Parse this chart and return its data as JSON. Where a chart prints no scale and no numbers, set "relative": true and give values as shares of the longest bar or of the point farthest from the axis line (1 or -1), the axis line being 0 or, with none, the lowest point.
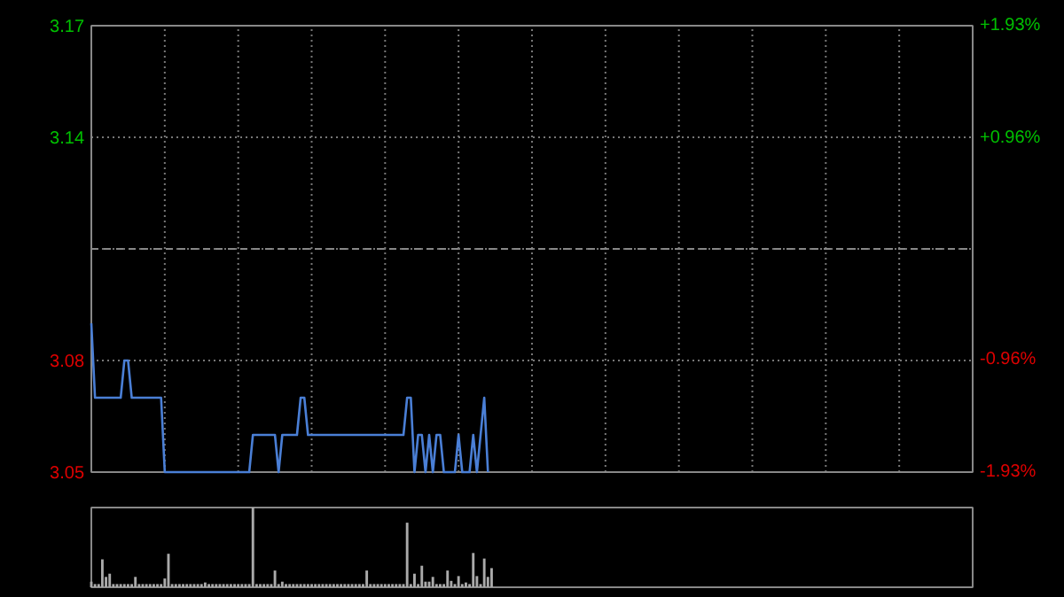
{
  "chart_data": [
    {
      "type": "line",
      "categories": [
        null,
        null,
        null,
        null,
        null,
        null,
        null,
        null,
        null,
        null,
        null,
        null,
        null,
        null,
        null,
        null,
        null,
        null,
        null,
        null,
        null,
        null,
        null,
        null,
        null,
        null,
        null,
        null,
        null,
        null,
        null,
        null,
        null,
        null,
        null,
        null,
        null,
        null,
        null,
        null,
        null,
        null,
        null,
        null,
        null,
        null,
        null,
        null,
        null,
        null,
        null,
        null,
        null,
        null,
        null,
        null,
        null,
        null,
        null,
        null,
        null,
        null,
        null,
        null,
        null,
        null,
        null,
        null,
        null,
        null,
        null,
        null,
        null,
        null,
        null,
        null,
        null,
        null,
        null,
        null,
        null,
        null,
        null,
        null,
        null,
        null,
        null,
        null,
        null,
        null,
        null,
        null,
        null,
        null,
        null,
        null,
        null,
        null,
        null,
        null,
        null,
        null,
        null,
        null,
        null,
        null,
        null,
        null,
        null,
        null,
        null,
        null,
        null,
        null,
        null,
        null,
        null,
        null,
        null,
        null,
        null,
        null,
        null,
        null,
        null,
        null,
        null,
        null,
        null,
        null,
        null,
        null,
        null,
        null,
        null,
        null,
        null,
        null,
        null,
        null,
        null,
        null,
        null,
        null,
        null,
        null,
        null,
        null,
        null,
        null,
        null,
        null,
        null,
        null,
        null,
        null,
        null,
        null,
        null,
        null,
        null,
        null,
        null,
        null,
        null,
        null,
        null,
        null,
        null,
        null,
        null,
        null,
        null,
        null,
        null,
        null,
        null,
        null,
        null,
        null,
        null,
        null,
        null,
        null,
        null,
        null,
        null,
        null,
        null,
        null,
        null,
        null,
        null,
        null,
        null,
        null,
        null,
        null,
        null,
        null,
        null,
        null,
        null,
        null,
        null,
        null,
        null,
        null,
        null,
        null,
        null,
        null,
        null,
        null,
        null,
        null,
        null,
        null,
        null,
        null,
        null,
        null,
        null,
        null,
        null,
        null,
        null,
        null,
        null,
        null,
        null,
        null,
        null,
        null,
        null,
        null,
        null,
        null,
        null,
        null,
        null
      ],
      "ylim": [
        3.05,
        3.17
      ],
      "yticks": [
        3.05,
        3.08,
        {
          "value": 3.11,
          "label": null
        },
        3.14,
        3.17
      ],
      "y2lim": [
        -1.93,
        1.93
      ],
      "y2ticks": [
        {
          "value": -1.93,
          "label": "-1.93%"
        },
        {
          "value": -0.96,
          "label": "-0.96%"
        },
        {
          "value": 0.96,
          "label": "+0.96%"
        },
        {
          "value": 1.93,
          "label": "+1.93%"
        }
      ],
      "ref_lines": [
        {
          "axis": "y",
          "value": 3.11,
          "label": null,
          "line_style": "dashed",
          "color": "#888888"
        }
      ],
      "grid": true,
      "tick_labels": "y",
      "marker": "none",
      "line_style": "solid",
      "series": [
        {
          "color": "#4a7fd6",
          "values": [
            3.09,
            3.07,
            3.07,
            3.07,
            3.07,
            3.07,
            3.07,
            3.07,
            3.07,
            3.08,
            3.08,
            3.07,
            3.07,
            3.07,
            3.07,
            3.07,
            3.07,
            3.07,
            3.07,
            3.07,
            3.05,
            3.05,
            3.05,
            3.05,
            3.05,
            3.05,
            3.05,
            3.05,
            3.05,
            3.05,
            3.05,
            3.05,
            3.05,
            3.05,
            3.05,
            3.05,
            3.05,
            3.05,
            3.05,
            3.05,
            3.05,
            3.05,
            3.05,
            3.05,
            3.06,
            3.06,
            3.06,
            3.06,
            3.06,
            3.06,
            3.06,
            3.05,
            3.06,
            3.06,
            3.06,
            3.06,
            3.06,
            3.07,
            3.07,
            3.06,
            3.06,
            3.06,
            3.06,
            3.06,
            3.06,
            3.06,
            3.06,
            3.06,
            3.06,
            3.06,
            3.06,
            3.06,
            3.06,
            3.06,
            3.06,
            3.06,
            3.06,
            3.06,
            3.06,
            3.06,
            3.06,
            3.06,
            3.06,
            3.06,
            3.06,
            3.06,
            3.07,
            3.07,
            3.05,
            3.06,
            3.06,
            3.05,
            3.06,
            3.05,
            3.06,
            3.06,
            3.05,
            3.05,
            3.05,
            3.05,
            3.06,
            3.05,
            3.05,
            3.05,
            3.06,
            3.05,
            3.06,
            3.07,
            3.05,
            null,
            null,
            null,
            null,
            null,
            null,
            null,
            null,
            null,
            null,
            null,
            null,
            null,
            null,
            null,
            null,
            null,
            null,
            null,
            null,
            null,
            null,
            null,
            null,
            null,
            null,
            null,
            null,
            null,
            null,
            null,
            null,
            null,
            null,
            null,
            null,
            null,
            null,
            null,
            null,
            null,
            null,
            null,
            null,
            null,
            null,
            null,
            null,
            null,
            null,
            null,
            null,
            null,
            null,
            null,
            null,
            null,
            null,
            null,
            null,
            null,
            null,
            null,
            null,
            null,
            null,
            null,
            null,
            null,
            null,
            null,
            null,
            null,
            null,
            null,
            null,
            null,
            null,
            null,
            null,
            null,
            null,
            null,
            null,
            null,
            null,
            null,
            null,
            null,
            null,
            null,
            null,
            null,
            null,
            null,
            null,
            null,
            null,
            null,
            null,
            null,
            null,
            null,
            null,
            null,
            null,
            null,
            null,
            null,
            null,
            null,
            null,
            null,
            null,
            null,
            null,
            null,
            null,
            null,
            null,
            null,
            null,
            null,
            null,
            null,
            null,
            null,
            null,
            null,
            null,
            null,
            null
          ]
        }
      ]
    },
    {
      "type": "bar",
      "relative": true,
      "tick_labels": false,
      "grid": false,
      "categories": [
        null,
        null,
        null,
        null,
        null,
        null,
        null,
        null,
        null,
        null,
        null,
        null,
        null,
        null,
        null,
        null,
        null,
        null,
        null,
        null,
        null,
        null,
        null,
        null,
        null,
        null,
        null,
        null,
        null,
        null,
        null,
        null,
        null,
        null,
        null,
        null,
        null,
        null,
        null,
        null,
        null,
        null,
        null,
        null,
        null,
        null,
        null,
        null,
        null,
        null,
        null,
        null,
        null,
        null,
        null,
        null,
        null,
        null,
        null,
        null,
        null,
        null,
        null,
        null,
        null,
        null,
        null,
        null,
        null,
        null,
        null,
        null,
        null,
        null,
        null,
        null,
        null,
        null,
        null,
        null,
        null,
        null,
        null,
        null,
        null,
        null,
        null,
        null,
        null,
        null,
        null,
        null,
        null,
        null,
        null,
        null,
        null,
        null,
        null,
        null,
        null,
        null,
        null,
        null,
        null,
        null,
        null,
        null,
        null,
        null,
        null,
        null,
        null,
        null,
        null,
        null,
        null,
        null,
        null,
        null,
        null,
        null,
        null,
        null,
        null,
        null,
        null,
        null,
        null,
        null,
        null,
        null,
        null,
        null,
        null,
        null,
        null,
        null,
        null,
        null,
        null,
        null,
        null,
        null,
        null,
        null,
        null,
        null,
        null,
        null,
        null,
        null,
        null,
        null,
        null,
        null,
        null,
        null,
        null,
        null,
        null,
        null,
        null,
        null,
        null,
        null,
        null,
        null,
        null,
        null,
        null,
        null,
        null,
        null,
        null,
        null,
        null,
        null,
        null,
        null,
        null,
        null,
        null,
        null,
        null,
        null,
        null,
        null,
        null,
        null,
        null,
        null,
        null,
        null,
        null,
        null,
        null,
        null,
        null,
        null,
        null,
        null,
        null,
        null,
        null,
        null,
        null,
        null,
        null,
        null,
        null,
        null,
        null,
        null,
        null,
        null,
        null,
        null,
        null,
        null,
        null,
        null,
        null,
        null,
        null,
        null,
        null,
        null,
        null,
        null,
        null,
        null,
        null,
        null,
        null,
        null,
        null,
        null,
        null,
        null,
        null
      ],
      "series": [
        {
          "color": "#aaaaaa",
          "values": [
            0.07,
            0.04,
            0.04,
            0.35,
            0.13,
            0.17,
            0.04,
            0.04,
            0.04,
            0.04,
            0.04,
            0.04,
            0.13,
            0.04,
            0.04,
            0.04,
            0.04,
            0.04,
            0.04,
            0.04,
            0.11,
            0.42,
            0.04,
            0.04,
            0.04,
            0.04,
            0.04,
            0.04,
            0.04,
            0.04,
            0.04,
            0.06,
            0.04,
            0.04,
            0.04,
            0.04,
            0.04,
            0.04,
            0.04,
            0.04,
            0.04,
            0.04,
            0.04,
            0.04,
            1,
            0.04,
            0.04,
            0.04,
            0.04,
            0.04,
            0.21,
            0.04,
            0.07,
            0.04,
            0.04,
            0.04,
            0.04,
            0.04,
            0.04,
            0.04,
            0.04,
            0.04,
            0.04,
            0.04,
            0.04,
            0.04,
            0.04,
            0.04,
            0.04,
            0.04,
            0.04,
            0.04,
            0.04,
            0.04,
            0.04,
            0.21,
            0.04,
            0.04,
            0.04,
            0.04,
            0.04,
            0.04,
            0.04,
            0.04,
            0.04,
            0.04,
            0.81,
            0.04,
            0.17,
            0.04,
            0.27,
            0.07,
            0.07,
            0.13,
            0.04,
            0.04,
            0.04,
            0.21,
            0.08,
            0.04,
            0.14,
            0.04,
            0.06,
            0.04,
            0.43,
            0.14,
            0.04,
            0.36,
            0.13,
            0.24,
            null,
            null,
            null,
            null,
            null,
            null,
            null,
            null,
            null,
            null,
            null,
            null,
            null,
            null,
            null,
            null,
            null,
            null,
            null,
            null,
            null,
            null,
            null,
            null,
            null,
            null,
            null,
            null,
            null,
            null,
            null,
            null,
            null,
            null,
            null,
            null,
            null,
            null,
            null,
            null,
            null,
            null,
            null,
            null,
            null,
            null,
            null,
            null,
            null,
            null,
            null,
            null,
            null,
            null,
            null,
            null,
            null,
            null,
            null,
            null,
            null,
            null,
            null,
            null,
            null,
            null,
            null,
            null,
            null,
            null,
            null,
            null,
            null,
            null,
            null,
            null,
            null,
            null,
            null,
            null,
            null,
            null,
            null,
            null,
            null,
            null,
            null,
            null,
            null,
            null,
            null,
            null,
            null,
            null,
            null,
            null,
            null,
            null,
            null,
            null,
            null,
            null,
            null,
            null,
            null,
            null,
            null,
            null,
            null,
            null,
            null,
            null,
            null,
            null,
            null,
            null,
            null,
            null,
            null,
            null,
            null,
            null,
            null,
            null,
            null,
            null,
            null,
            null,
            null,
            null,
            null
          ]
        }
      ]
    }
  ]
}
